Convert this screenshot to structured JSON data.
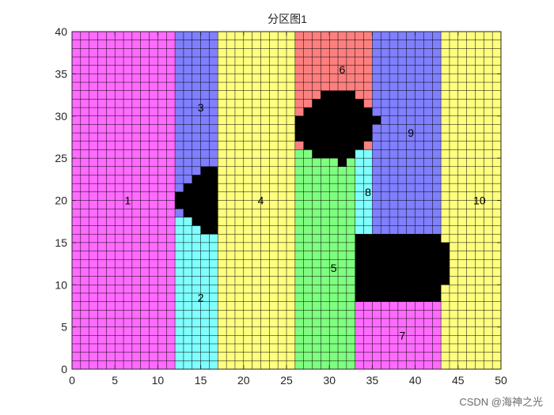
{
  "chart_data": {
    "type": "heatmap",
    "title": "分区图1",
    "xlabel": "",
    "ylabel": "",
    "xlim": [
      0,
      50
    ],
    "ylim": [
      0,
      40
    ],
    "xticks": [
      "0",
      "5",
      "10",
      "15",
      "20",
      "25",
      "30",
      "35",
      "40",
      "45",
      "50"
    ],
    "yticks": [
      "0",
      "5",
      "10",
      "15",
      "20",
      "25",
      "30",
      "35",
      "40"
    ],
    "grid_cell_size": 1,
    "colors": {
      "1": "#ff6bff",
      "2": "#7fffff",
      "3": "#7f7fff",
      "4": "#ffff7f",
      "5": "#7fff7f",
      "6": "#ff7f7f",
      "7": "#ff6bff",
      "8": "#7fffff",
      "9": "#7f7fff",
      "10": "#ffff7f",
      "obstacle": "#000000",
      "gridline": "#000000"
    },
    "regions": [
      {
        "id": 1,
        "label": "1",
        "label_x": 6.5,
        "label_y": 20,
        "rects": [
          [
            0,
            0,
            12,
            40
          ]
        ]
      },
      {
        "id": 2,
        "label": "2",
        "label_x": 15,
        "label_y": 8.5,
        "rects": [
          [
            12,
            0,
            17,
            18
          ]
        ]
      },
      {
        "id": 3,
        "label": "3",
        "label_x": 15,
        "label_y": 31,
        "rects": [
          [
            12,
            18,
            17,
            40
          ]
        ]
      },
      {
        "id": 4,
        "label": "4",
        "label_x": 22,
        "label_y": 20,
        "rects": [
          [
            17,
            0,
            26,
            40
          ]
        ]
      },
      {
        "id": 5,
        "label": "5",
        "label_x": 30.5,
        "label_y": 12,
        "rects": [
          [
            26,
            0,
            33,
            26
          ]
        ]
      },
      {
        "id": 6,
        "label": "6",
        "label_x": 31.5,
        "label_y": 35.5,
        "rects": [
          [
            26,
            26,
            35,
            40
          ]
        ]
      },
      {
        "id": 7,
        "label": "7",
        "label_x": 38.5,
        "label_y": 4,
        "rects": [
          [
            33,
            0,
            43,
            9
          ]
        ]
      },
      {
        "id": 8,
        "label": "8",
        "label_x": 34.5,
        "label_y": 21,
        "rects": [
          [
            33,
            9,
            35,
            26
          ]
        ]
      },
      {
        "id": 9,
        "label": "9",
        "label_x": 39.5,
        "label_y": 28,
        "rects": [
          [
            35,
            9,
            43,
            40
          ]
        ]
      },
      {
        "id": 10,
        "label": "10",
        "label_x": 47.5,
        "label_y": 20,
        "rects": [
          [
            43,
            0,
            50,
            40
          ]
        ]
      }
    ],
    "obstacles": [
      [
        [
          15,
          16
        ],
        [
          17,
          16
        ],
        [
          17,
          24
        ],
        [
          15,
          24
        ],
        [
          15,
          23
        ],
        [
          14,
          23
        ],
        [
          14,
          22
        ],
        [
          13,
          22
        ],
        [
          13,
          21
        ],
        [
          12,
          21
        ],
        [
          12,
          19
        ],
        [
          13,
          19
        ],
        [
          13,
          18
        ],
        [
          14,
          18
        ],
        [
          14,
          17
        ],
        [
          15,
          17
        ]
      ],
      [
        [
          29,
          25
        ],
        [
          31,
          25
        ],
        [
          31,
          24
        ],
        [
          32,
          24
        ],
        [
          32,
          25
        ],
        [
          33,
          25
        ],
        [
          33,
          26
        ],
        [
          34,
          26
        ],
        [
          34,
          27
        ],
        [
          35,
          27
        ],
        [
          35,
          29
        ],
        [
          36,
          29
        ],
        [
          36,
          30
        ],
        [
          35,
          30
        ],
        [
          35,
          31
        ],
        [
          34,
          31
        ],
        [
          34,
          32
        ],
        [
          33,
          32
        ],
        [
          33,
          33
        ],
        [
          29,
          33
        ],
        [
          29,
          32
        ],
        [
          28,
          32
        ],
        [
          28,
          31
        ],
        [
          27,
          31
        ],
        [
          27,
          30
        ],
        [
          26,
          30
        ],
        [
          26,
          27
        ],
        [
          27,
          27
        ],
        [
          27,
          26
        ],
        [
          28,
          26
        ],
        [
          28,
          25
        ]
      ],
      [
        [
          33,
          8
        ],
        [
          43,
          8
        ],
        [
          43,
          10
        ],
        [
          44,
          10
        ],
        [
          44,
          15
        ],
        [
          43,
          15
        ],
        [
          43,
          16
        ],
        [
          33,
          16
        ]
      ]
    ]
  },
  "watermark": {
    "text": "CSDN @海神之光"
  }
}
